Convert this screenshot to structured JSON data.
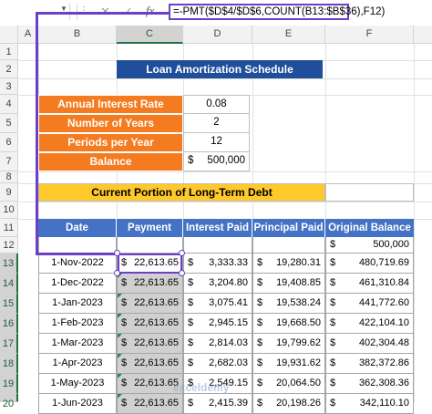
{
  "formula_bar": {
    "name_box": "",
    "dots": "⋮",
    "cancel_icon": "✕",
    "enter_icon": "✓",
    "fx_label": "fx",
    "formula": "=-PMT($D$4/$D$6,COUNT(B13:$B$36),F12)"
  },
  "columns": [
    "A",
    "B",
    "C",
    "D",
    "E",
    "F"
  ],
  "rows": [
    "1",
    "2",
    "3",
    "4",
    "5",
    "6",
    "7",
    "8",
    "9",
    "10",
    "11",
    "12",
    "13",
    "14",
    "15",
    "16",
    "17",
    "18",
    "19",
    "20"
  ],
  "title": "Loan Amortization Schedule",
  "params": [
    {
      "label": "Annual Interest Rate",
      "value": "0.08"
    },
    {
      "label": "Number of Years",
      "value": "2"
    },
    {
      "label": "Periods per Year",
      "value": "12"
    },
    {
      "label": "Balance",
      "currency": "$",
      "value": "500,000"
    }
  ],
  "current_portion": {
    "label": "Current Portion of Long-Term Debt",
    "value": ""
  },
  "table": {
    "headers": [
      "Date",
      "Payment",
      "Interest Paid",
      "Principal Paid",
      "Original Balance"
    ],
    "initial_balance": {
      "currency": "$",
      "value": "500,000"
    },
    "rows": [
      {
        "date": "1-Nov-2022",
        "payment": "22,613.65",
        "interest": "3,333.33",
        "principal": "19,280.31",
        "balance": "480,719.69"
      },
      {
        "date": "1-Dec-2022",
        "payment": "22,613.65",
        "interest": "3,204.80",
        "principal": "19,408.85",
        "balance": "461,310.84"
      },
      {
        "date": "1-Jan-2023",
        "payment": "22,613.65",
        "interest": "3,075.41",
        "principal": "19,538.24",
        "balance": "441,772.60"
      },
      {
        "date": "1-Feb-2023",
        "payment": "22,613.65",
        "interest": "2,945.15",
        "principal": "19,668.50",
        "balance": "422,104.10"
      },
      {
        "date": "1-Mar-2023",
        "payment": "22,613.65",
        "interest": "2,814.03",
        "principal": "19,799.62",
        "balance": "402,304.48"
      },
      {
        "date": "1-Apr-2023",
        "payment": "22,613.65",
        "interest": "2,682.03",
        "principal": "19,931.62",
        "balance": "382,372.86"
      },
      {
        "date": "1-May-2023",
        "payment": "22,613.65",
        "interest": "2,549.15",
        "principal": "20,064.50",
        "balance": "362,308.36"
      },
      {
        "date": "1-Jun-2023",
        "payment": "22,613.65",
        "interest": "2,415.39",
        "principal": "20,198.26",
        "balance": "342,110.10"
      }
    ]
  },
  "currency_symbol": "$",
  "watermark": "exceldemy",
  "colors": {
    "title_bg": "#1f4e9b",
    "orange": "#f47b20",
    "yellow": "#ffc82b",
    "header_bg": "#4472c4",
    "highlight": "#6b3fc6"
  }
}
